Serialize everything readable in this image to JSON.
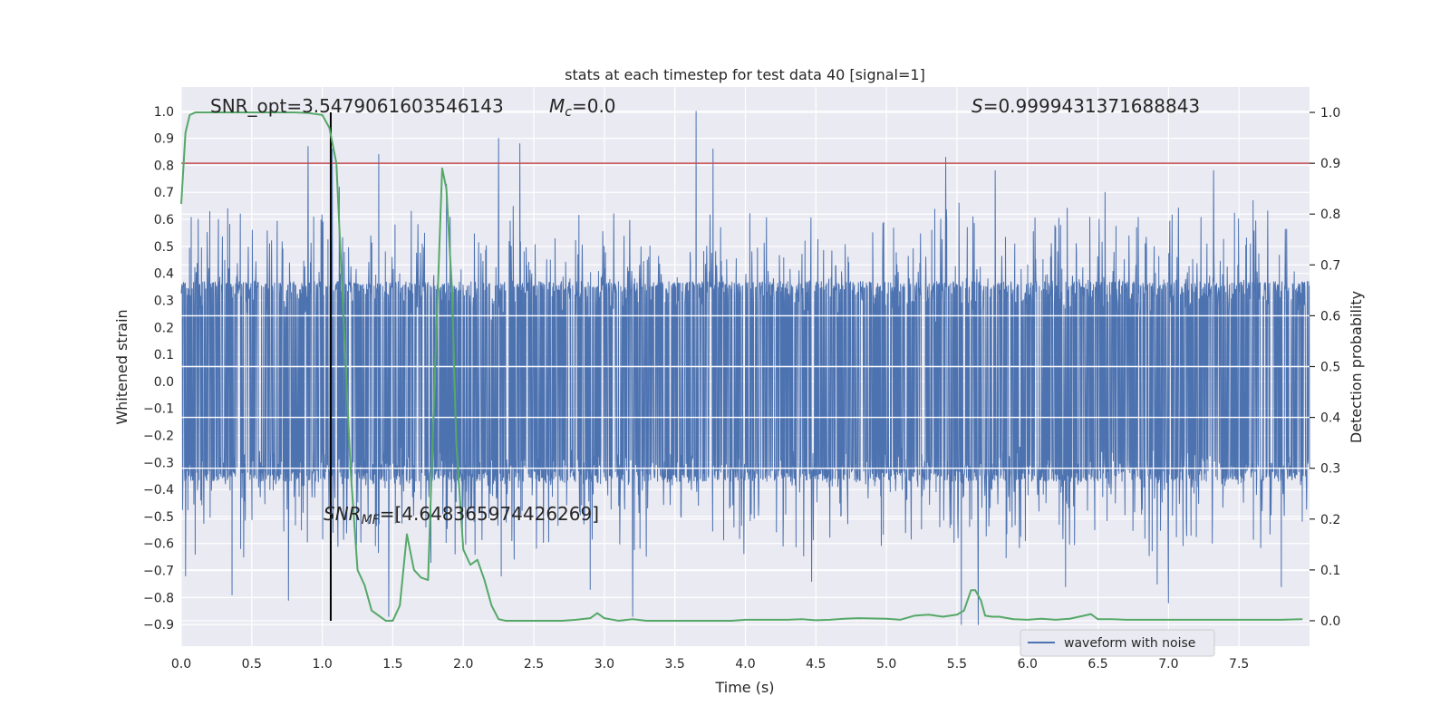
{
  "chart_data": {
    "type": "line",
    "title": "stats at each timestep for test data 40 [signal=1]",
    "xlabel": "Time (s)",
    "ylabel": "Whitened strain",
    "y2label": "Detection probability",
    "xlim": [
      0.0,
      8.0
    ],
    "ylim": [
      -0.98,
      1.09
    ],
    "y2lim": [
      -0.05,
      1.05
    ],
    "xticks": [
      "0.0",
      "0.5",
      "1.0",
      "1.5",
      "2.0",
      "2.5",
      "3.0",
      "3.5",
      "4.0",
      "4.5",
      "5.0",
      "5.5",
      "6.0",
      "6.5",
      "7.0",
      "7.5"
    ],
    "yticks": [
      "1.0",
      "0.9",
      "0.8",
      "0.7",
      "0.6",
      "0.5",
      "0.4",
      "0.3",
      "0.2",
      "0.1",
      "0.0",
      "−0.1",
      "−0.2",
      "−0.3",
      "−0.4",
      "−0.5",
      "−0.6",
      "−0.7",
      "−0.8",
      "−0.9"
    ],
    "y2ticks": [
      "1.0",
      "0.9",
      "0.8",
      "0.7",
      "0.6",
      "0.5",
      "0.4",
      "0.3",
      "0.2",
      "0.1",
      "0.0"
    ],
    "grid": true,
    "legend_position": "lower-right",
    "annotations": {
      "snr_opt": "SNR_opt=3.5479061603546143",
      "mc_symbol": "M",
      "mc_sub": "c",
      "mc_value": "=0.0",
      "s_symbol": "S",
      "s_value": "=0.9999431371688843",
      "snr_mf_symbol": "SNR",
      "snr_mf_sub": "MF",
      "snr_mf_value": "=[4.648365974426269]"
    },
    "threshold": 0.9,
    "event_time": 1.06,
    "series": [
      {
        "name": "waveform with noise",
        "color": "#4c72b0",
        "axis": "left",
        "style": "noise",
        "envelope_core": 0.37,
        "peaks": [
          {
            "x": 0.03,
            "y": -0.72
          },
          {
            "x": 0.1,
            "y": -0.64
          },
          {
            "x": 0.12,
            "y": 0.6
          },
          {
            "x": 0.36,
            "y": -0.79
          },
          {
            "x": 0.42,
            "y": 0.62
          },
          {
            "x": 0.76,
            "y": -0.81
          },
          {
            "x": 0.9,
            "y": 0.87
          },
          {
            "x": 1.07,
            "y": 0.86
          },
          {
            "x": 1.12,
            "y": 0.72
          },
          {
            "x": 1.4,
            "y": 0.84
          },
          {
            "x": 1.47,
            "y": -0.87
          },
          {
            "x": 1.63,
            "y": 0.63
          },
          {
            "x": 1.77,
            "y": -0.67
          },
          {
            "x": 1.88,
            "y": 0.73
          },
          {
            "x": 2.25,
            "y": 0.9
          },
          {
            "x": 2.27,
            "y": -0.72
          },
          {
            "x": 2.4,
            "y": 0.88
          },
          {
            "x": 2.9,
            "y": -0.77
          },
          {
            "x": 3.2,
            "y": -0.87
          },
          {
            "x": 3.65,
            "y": 1.0
          },
          {
            "x": 3.77,
            "y": 0.86
          },
          {
            "x": 4.47,
            "y": -0.74
          },
          {
            "x": 5.42,
            "y": 0.83
          },
          {
            "x": 5.53,
            "y": -0.9
          },
          {
            "x": 5.65,
            "y": -0.9
          },
          {
            "x": 5.77,
            "y": 0.78
          },
          {
            "x": 6.27,
            "y": -0.76
          },
          {
            "x": 6.55,
            "y": 0.7
          },
          {
            "x": 6.92,
            "y": -0.75
          },
          {
            "x": 7.0,
            "y": -0.82
          },
          {
            "x": 7.32,
            "y": 0.78
          },
          {
            "x": 7.6,
            "y": 0.67
          },
          {
            "x": 7.8,
            "y": -0.76
          }
        ]
      },
      {
        "name": "",
        "color": "#55a868",
        "axis": "right",
        "style": "line",
        "x": [
          0.0,
          0.03,
          0.06,
          0.1,
          0.15,
          0.2,
          0.3,
          0.4,
          0.5,
          0.6,
          0.7,
          0.8,
          0.9,
          0.95,
          1.0,
          1.05,
          1.1,
          1.15,
          1.2,
          1.25,
          1.3,
          1.35,
          1.4,
          1.45,
          1.5,
          1.55,
          1.6,
          1.65,
          1.7,
          1.75,
          1.8,
          1.85,
          1.88,
          1.92,
          1.95,
          2.0,
          2.05,
          2.1,
          2.15,
          2.2,
          2.25,
          2.3,
          2.5,
          2.7,
          2.8,
          2.9,
          2.95,
          3.0,
          3.1,
          3.2,
          3.3,
          3.5,
          3.7,
          3.9,
          4.0,
          4.2,
          4.3,
          4.4,
          4.5,
          4.6,
          4.7,
          4.8,
          5.0,
          5.1,
          5.2,
          5.3,
          5.4,
          5.5,
          5.55,
          5.6,
          5.63,
          5.67,
          5.7,
          5.75,
          5.8,
          5.9,
          6.0,
          6.1,
          6.2,
          6.3,
          6.4,
          6.45,
          6.5,
          6.6,
          6.7,
          6.8,
          6.9,
          7.0,
          7.2,
          7.4,
          7.6,
          7.8,
          7.95
        ],
        "y": [
          0.82,
          0.96,
          0.995,
          1.0,
          1.0,
          1.0,
          1.0,
          1.0,
          1.0,
          1.0,
          1.0,
          1.0,
          0.999,
          0.997,
          0.995,
          0.97,
          0.9,
          0.6,
          0.3,
          0.1,
          0.07,
          0.02,
          0.01,
          0.0,
          0.0,
          0.03,
          0.17,
          0.1,
          0.085,
          0.08,
          0.5,
          0.89,
          0.85,
          0.65,
          0.35,
          0.14,
          0.11,
          0.12,
          0.08,
          0.03,
          0.003,
          0.0,
          0.0,
          0.0,
          0.002,
          0.005,
          0.015,
          0.005,
          0.0,
          0.003,
          0.0,
          0.0,
          0.0,
          0.0,
          0.002,
          0.002,
          0.002,
          0.003,
          0.001,
          0.002,
          0.004,
          0.005,
          0.004,
          0.002,
          0.01,
          0.012,
          0.008,
          0.012,
          0.02,
          0.06,
          0.06,
          0.04,
          0.01,
          0.008,
          0.008,
          0.003,
          0.002,
          0.004,
          0.002,
          0.004,
          0.01,
          0.013,
          0.003,
          0.003,
          0.002,
          0.002,
          0.002,
          0.002,
          0.002,
          0.002,
          0.002,
          0.002,
          0.003
        ]
      }
    ]
  }
}
